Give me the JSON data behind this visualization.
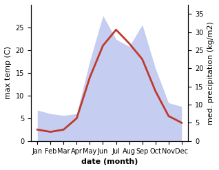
{
  "months": [
    "Jan",
    "Feb",
    "Mar",
    "Apr",
    "May",
    "Jun",
    "Jul",
    "Aug",
    "Sep",
    "Oct",
    "Nov",
    "Dec"
  ],
  "max_temp": [
    2.5,
    2.0,
    2.5,
    5.0,
    14.0,
    21.0,
    24.5,
    21.5,
    18.0,
    11.0,
    5.5,
    4.0
  ],
  "precipitation": [
    8.5,
    7.5,
    7.0,
    7.5,
    22.0,
    34.5,
    28.0,
    26.0,
    32.0,
    20.0,
    10.5,
    9.5
  ],
  "temp_color": "#c0392b",
  "precip_fill_color": "#c5cdf0",
  "precip_edge_color": "#c5cdf0",
  "ylabel_left": "max temp (C)",
  "ylabel_right": "med. precipitation (kg/m2)",
  "xlabel": "date (month)",
  "ylim_left": [
    0,
    30
  ],
  "ylim_right": [
    0,
    37.5
  ],
  "yticks_left": [
    0,
    5,
    10,
    15,
    20,
    25
  ],
  "yticks_right": [
    0,
    5,
    10,
    15,
    20,
    25,
    30,
    35
  ],
  "label_fontsize": 8,
  "tick_fontsize": 7
}
